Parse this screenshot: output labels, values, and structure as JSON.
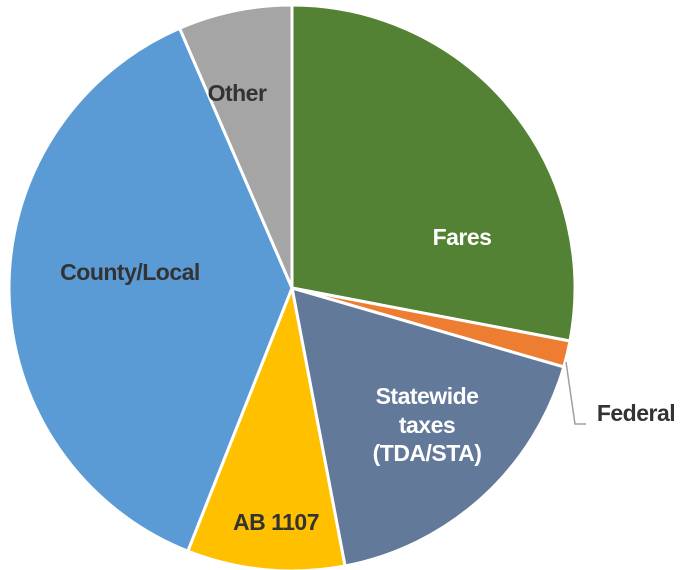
{
  "chart_data": {
    "type": "pie",
    "categories": [
      "Fares",
      "Federal",
      "Statewide taxes (TDA/STA)",
      "AB 1107",
      "County/Local",
      "Other"
    ],
    "values": [
      28,
      1.5,
      17.5,
      9,
      37.5,
      6.5
    ],
    "colors": [
      "#548235",
      "#ed7d31",
      "#62799a",
      "#ffc000",
      "#5b9bd5",
      "#a5a5a5"
    ]
  }
}
